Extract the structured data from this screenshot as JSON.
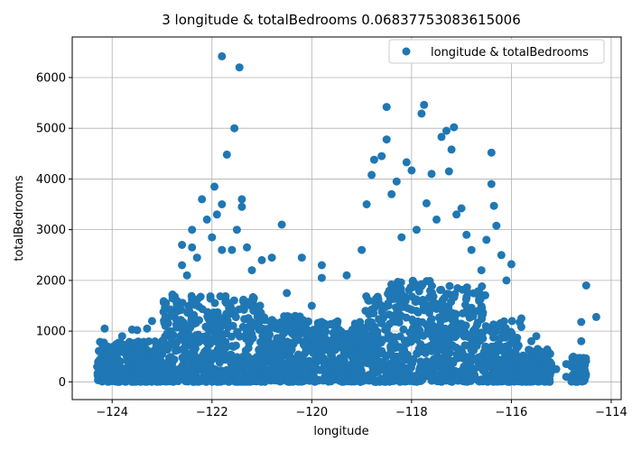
{
  "chart_data": {
    "type": "scatter",
    "title": "3 longitude & totalBedrooms 0.06837753083615006",
    "xlabel": "longitude",
    "ylabel": "totalBedrooms",
    "xlim": [
      -124.8,
      -113.8
    ],
    "ylim": [
      -350,
      6800
    ],
    "xticks": [
      -124,
      -122,
      -120,
      -118,
      -116,
      -114
    ],
    "xtick_labels": [
      "−124",
      "−122",
      "−120",
      "−118",
      "−116",
      "−114"
    ],
    "yticks": [
      0,
      1000,
      2000,
      3000,
      4000,
      5000,
      6000
    ],
    "ytick_labels": [
      "0",
      "1000",
      "2000",
      "3000",
      "4000",
      "5000",
      "6000"
    ],
    "grid": true,
    "legend_position": "top-right",
    "series": [
      {
        "name": "longitude & totalBedrooms",
        "color": "#1f77b4",
        "points": [
          [
            -124.3,
            300
          ],
          [
            -124.2,
            500
          ],
          [
            -124.1,
            700
          ],
          [
            -124.15,
            1050
          ],
          [
            -124.0,
            400
          ],
          [
            -123.9,
            250
          ],
          [
            -123.8,
            600
          ],
          [
            -123.8,
            900
          ],
          [
            -123.6,
            1030
          ],
          [
            -123.5,
            1020
          ],
          [
            -123.3,
            1050
          ],
          [
            -123.2,
            1200
          ],
          [
            -123.1,
            350
          ],
          [
            -123.0,
            800
          ],
          [
            -122.9,
            950
          ],
          [
            -122.8,
            1300
          ],
          [
            -122.7,
            1600
          ],
          [
            -122.6,
            2300
          ],
          [
            -122.6,
            2700
          ],
          [
            -122.5,
            2100
          ],
          [
            -122.4,
            2650
          ],
          [
            -122.4,
            3000
          ],
          [
            -122.3,
            2450
          ],
          [
            -122.2,
            3600
          ],
          [
            -122.1,
            3200
          ],
          [
            -122.0,
            2850
          ],
          [
            -121.95,
            3850
          ],
          [
            -121.9,
            3300
          ],
          [
            -121.8,
            2600
          ],
          [
            -121.8,
            3500
          ],
          [
            -121.8,
            6420
          ],
          [
            -121.7,
            4480
          ],
          [
            -121.6,
            2600
          ],
          [
            -121.55,
            5000
          ],
          [
            -121.5,
            3000
          ],
          [
            -121.45,
            6200
          ],
          [
            -121.4,
            3600
          ],
          [
            -121.4,
            3450
          ],
          [
            -121.3,
            2650
          ],
          [
            -121.2,
            2200
          ],
          [
            -121.0,
            2400
          ],
          [
            -120.8,
            2450
          ],
          [
            -120.6,
            3100
          ],
          [
            -120.5,
            1750
          ],
          [
            -120.2,
            2450
          ],
          [
            -120.0,
            1500
          ],
          [
            -119.8,
            2300
          ],
          [
            -119.8,
            2050
          ],
          [
            -119.3,
            2100
          ],
          [
            -119.0,
            2600
          ],
          [
            -118.9,
            3500
          ],
          [
            -118.8,
            4080
          ],
          [
            -118.75,
            4380
          ],
          [
            -118.6,
            4450
          ],
          [
            -118.5,
            5420
          ],
          [
            -118.5,
            4780
          ],
          [
            -118.4,
            3700
          ],
          [
            -118.3,
            3950
          ],
          [
            -118.2,
            2850
          ],
          [
            -118.1,
            4330
          ],
          [
            -118.0,
            4170
          ],
          [
            -117.9,
            3000
          ],
          [
            -117.8,
            5290
          ],
          [
            -117.75,
            5460
          ],
          [
            -117.7,
            3520
          ],
          [
            -117.6,
            4100
          ],
          [
            -117.5,
            3200
          ],
          [
            -117.4,
            4830
          ],
          [
            -117.3,
            4950
          ],
          [
            -117.25,
            4150
          ],
          [
            -117.2,
            4580
          ],
          [
            -117.15,
            5020
          ],
          [
            -117.1,
            3300
          ],
          [
            -117.0,
            3420
          ],
          [
            -116.9,
            2900
          ],
          [
            -116.8,
            2600
          ],
          [
            -116.6,
            2200
          ],
          [
            -116.5,
            2800
          ],
          [
            -116.4,
            4520
          ],
          [
            -116.4,
            3900
          ],
          [
            -116.35,
            3470
          ],
          [
            -116.3,
            3080
          ],
          [
            -116.2,
            2500
          ],
          [
            -116.1,
            2000
          ],
          [
            -116.0,
            2320
          ],
          [
            -115.8,
            1250
          ],
          [
            -115.6,
            800
          ],
          [
            -115.5,
            900
          ],
          [
            -115.4,
            500
          ],
          [
            -115.2,
            350
          ],
          [
            -114.9,
            350
          ],
          [
            -114.7,
            400
          ],
          [
            -114.6,
            800
          ],
          [
            -114.6,
            1180
          ],
          [
            -114.5,
            1900
          ],
          [
            -114.3,
            1280
          ],
          [
            -114.6,
            20
          ],
          [
            -114.7,
            200
          ],
          [
            -114.9,
            100
          ],
          [
            -115.1,
            250
          ],
          [
            -115.3,
            150
          ]
        ]
      }
    ],
    "density_bands": [
      {
        "x_from": -124.3,
        "x_to": -123.0,
        "max": 800
      },
      {
        "x_from": -123.0,
        "x_to": -122.0,
        "max": 1800
      },
      {
        "x_from": -122.0,
        "x_to": -121.0,
        "max": 1700
      },
      {
        "x_from": -121.0,
        "x_to": -120.0,
        "max": 1300
      },
      {
        "x_from": -120.0,
        "x_to": -119.0,
        "max": 1200
      },
      {
        "x_from": -119.0,
        "x_to": -118.5,
        "max": 1700
      },
      {
        "x_from": -118.5,
        "x_to": -117.5,
        "max": 2000
      },
      {
        "x_from": -117.5,
        "x_to": -116.5,
        "max": 1900
      },
      {
        "x_from": -116.5,
        "x_to": -115.8,
        "max": 1200
      },
      {
        "x_from": -115.8,
        "x_to": -115.2,
        "max": 650
      },
      {
        "x_from": -114.8,
        "x_to": -114.5,
        "max": 500
      }
    ]
  }
}
